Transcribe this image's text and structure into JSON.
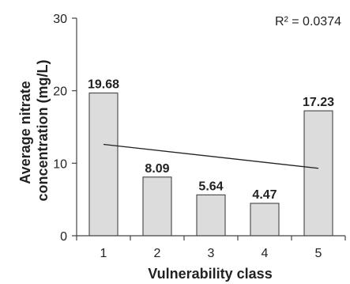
{
  "chart_data": {
    "type": "bar",
    "categories": [
      "1",
      "2",
      "3",
      "4",
      "5"
    ],
    "values": [
      19.68,
      8.09,
      5.64,
      4.47,
      17.23
    ],
    "data_labels": [
      "19.68",
      "8.09",
      "5.64",
      "4.47",
      "17.23"
    ],
    "xlabel": "Vulnerability class",
    "ylabel_lines": [
      "Average nitrate",
      "concentration (mg/L)"
    ],
    "ylim": [
      0,
      30
    ],
    "yticks": [
      "0",
      "10",
      "20",
      "30"
    ],
    "ytick_values": [
      0,
      10,
      20,
      30
    ],
    "trendline": {
      "start": [
        1,
        12.6
      ],
      "end": [
        5,
        9.3
      ]
    },
    "annotation": "R² = 0.0374",
    "grid": false,
    "bar_color": "#dcdcdc",
    "bar_edge_color": "#333333"
  }
}
